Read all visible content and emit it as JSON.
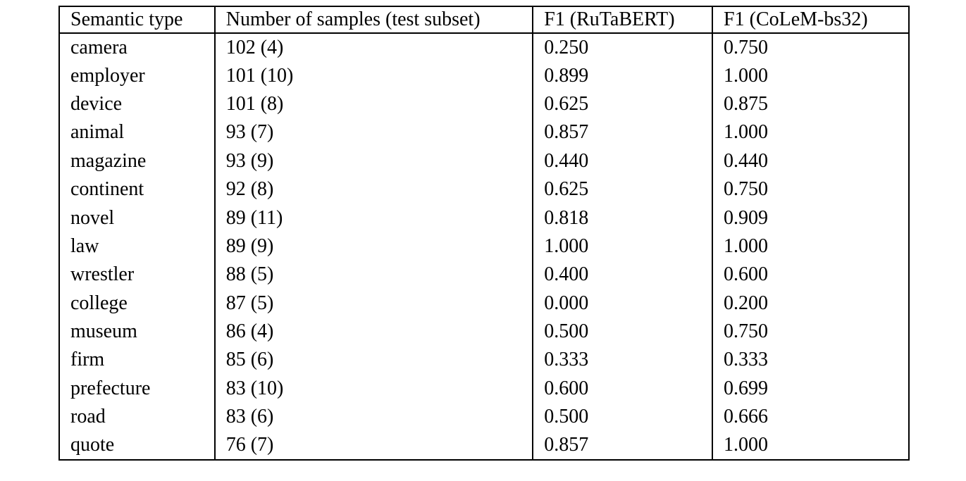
{
  "table": {
    "columns": [
      "Semantic type",
      "Number of samples (test subset)",
      "F1 (RuTaBERT)",
      "F1 (CoLeM-bs32)"
    ],
    "rows": [
      {
        "type": "camera",
        "samples": "102 (4)",
        "f1_rutabert": "0.250",
        "f1_colem": "0.750",
        "colem_bold": true
      },
      {
        "type": "employer",
        "samples": "101 (10)",
        "f1_rutabert": "0.899",
        "f1_colem": "1.000",
        "colem_bold": true
      },
      {
        "type": "device",
        "samples": "101 (8)",
        "f1_rutabert": "0.625",
        "f1_colem": "0.875",
        "colem_bold": true
      },
      {
        "type": "animal",
        "samples": "93 (7)",
        "f1_rutabert": "0.857",
        "f1_colem": "1.000",
        "colem_bold": true
      },
      {
        "type": "magazine",
        "samples": "93 (9)",
        "f1_rutabert": "0.440",
        "f1_colem": "0.440",
        "colem_bold": false
      },
      {
        "type": "continent",
        "samples": "92 (8)",
        "f1_rutabert": "0.625",
        "f1_colem": "0.750",
        "colem_bold": true
      },
      {
        "type": "novel",
        "samples": "89 (11)",
        "f1_rutabert": "0.818",
        "f1_colem": "0.909",
        "colem_bold": true
      },
      {
        "type": "law",
        "samples": "89 (9)",
        "f1_rutabert": "1.000",
        "f1_colem": "1.000",
        "colem_bold": false
      },
      {
        "type": "wrestler",
        "samples": "88 (5)",
        "f1_rutabert": "0.400",
        "f1_colem": "0.600",
        "colem_bold": true
      },
      {
        "type": "college",
        "samples": "87 (5)",
        "f1_rutabert": "0.000",
        "f1_colem": "0.200",
        "colem_bold": true
      },
      {
        "type": "museum",
        "samples": "86 (4)",
        "f1_rutabert": "0.500",
        "f1_colem": "0.750",
        "colem_bold": true
      },
      {
        "type": "firm",
        "samples": "85 (6)",
        "f1_rutabert": "0.333",
        "f1_colem": "0.333",
        "colem_bold": false
      },
      {
        "type": "prefecture",
        "samples": "83 (10)",
        "f1_rutabert": "0.600",
        "f1_colem": "0.699",
        "colem_bold": true
      },
      {
        "type": "road",
        "samples": "83 (6)",
        "f1_rutabert": "0.500",
        "f1_colem": "0.666",
        "colem_bold": true
      },
      {
        "type": "quote",
        "samples": "76 (7)",
        "f1_rutabert": "0.857",
        "f1_colem": "1.000",
        "colem_bold": true
      }
    ],
    "colors": {
      "text": "#000000",
      "background": "#ffffff",
      "border": "#000000"
    }
  }
}
